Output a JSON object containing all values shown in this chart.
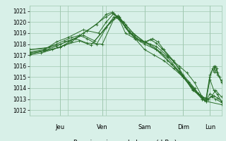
{
  "bg_color": "#d8f0e8",
  "grid_color": "#a0c8b0",
  "line_color": "#2a6e2a",
  "marker_color": "#2a6e2a",
  "ylim": [
    1011.5,
    1021.5
  ],
  "yticks": [
    1012,
    1013,
    1014,
    1015,
    1016,
    1017,
    1018,
    1019,
    1020,
    1021
  ],
  "xlabel": "Pression niveau de la mer( hPa )",
  "day_labels": [
    "Jeu",
    "Ven",
    "Sam",
    "Dim",
    "Lun"
  ],
  "day_positions": [
    0.16,
    0.38,
    0.6,
    0.8,
    0.94
  ],
  "lines": [
    [
      0.0,
      1017.1,
      0.08,
      1017.4,
      0.16,
      1017.7,
      0.22,
      1018.2,
      0.28,
      1019.0,
      0.35,
      1019.8,
      0.4,
      1020.7,
      0.43,
      1020.9,
      0.46,
      1020.5,
      0.5,
      1019.5,
      0.55,
      1018.6,
      0.6,
      1018.1,
      0.63,
      1018.4,
      0.66,
      1018.1,
      0.69,
      1017.6,
      0.72,
      1017.0,
      0.75,
      1016.4,
      0.78,
      1015.8,
      0.8,
      1015.2,
      0.83,
      1014.6,
      0.86,
      1014.0,
      0.88,
      1013.5,
      0.9,
      1013.1,
      0.92,
      1012.8,
      1.0,
      1012.5
    ],
    [
      0.0,
      1017.1,
      0.16,
      1017.7,
      0.3,
      1019.2,
      0.4,
      1020.5,
      0.43,
      1020.8,
      0.47,
      1020.3,
      0.52,
      1019.2,
      0.56,
      1018.5,
      0.6,
      1018.2,
      0.64,
      1018.5,
      0.67,
      1018.2,
      0.7,
      1017.5,
      0.75,
      1016.5,
      0.8,
      1015.1,
      0.85,
      1013.8,
      0.9,
      1013.2,
      0.92,
      1013.1,
      0.94,
      1015.2,
      0.955,
      1015.8,
      0.96,
      1015.5,
      0.965,
      1015.9,
      0.97,
      1016.0,
      0.98,
      1015.2,
      1.0,
      1014.7
    ],
    [
      0.0,
      1017.5,
      0.08,
      1017.6,
      0.14,
      1018.0,
      0.18,
      1018.3,
      0.22,
      1018.6,
      0.26,
      1018.8,
      0.3,
      1018.5,
      0.35,
      1018.0,
      0.4,
      1019.5,
      0.44,
      1020.5,
      0.47,
      1020.2,
      0.5,
      1019.0,
      0.55,
      1018.5,
      0.6,
      1018.0,
      0.66,
      1017.5,
      0.72,
      1016.8,
      0.78,
      1015.5,
      0.84,
      1014.2,
      0.88,
      1013.5,
      0.92,
      1013.0,
      0.94,
      1014.8,
      0.96,
      1013.8,
      0.98,
      1013.4,
      1.0,
      1012.8
    ],
    [
      0.0,
      1017.5,
      0.1,
      1017.7,
      0.16,
      1018.0,
      0.24,
      1018.5,
      0.3,
      1018.1,
      0.38,
      1018.0,
      0.44,
      1020.3,
      0.47,
      1020.5,
      0.5,
      1019.5,
      0.55,
      1018.5,
      0.6,
      1017.5,
      0.65,
      1017.0,
      0.7,
      1016.5,
      0.75,
      1015.8,
      0.8,
      1015.0,
      0.85,
      1014.0,
      0.9,
      1013.0,
      0.92,
      1012.9,
      0.95,
      1013.3,
      0.97,
      1013.8,
      1.0,
      1013.2
    ],
    [
      0.0,
      1017.3,
      0.08,
      1017.5,
      0.14,
      1018.2,
      0.2,
      1018.6,
      0.28,
      1019.3,
      0.36,
      1019.0,
      0.4,
      1020.0,
      0.44,
      1020.8,
      0.48,
      1020.1,
      0.52,
      1019.0,
      0.58,
      1018.3,
      0.63,
      1018.0,
      0.68,
      1017.3,
      0.74,
      1016.2,
      0.8,
      1015.0,
      0.85,
      1013.9,
      0.9,
      1013.0,
      0.92,
      1012.8,
      0.94,
      1015.0,
      0.96,
      1016.0,
      0.97,
      1015.5,
      0.975,
      1015.8,
      0.98,
      1015.4,
      0.99,
      1015.0,
      1.0,
      1014.5
    ],
    [
      0.0,
      1017.2,
      0.07,
      1017.4,
      0.14,
      1017.8,
      0.2,
      1018.3,
      0.28,
      1018.8,
      0.34,
      1018.3,
      0.42,
      1020.0,
      0.46,
      1020.6,
      0.5,
      1019.8,
      0.55,
      1018.8,
      0.6,
      1018.2,
      0.66,
      1017.8,
      0.72,
      1016.9,
      0.78,
      1016.0,
      0.82,
      1015.4,
      0.86,
      1014.5,
      0.9,
      1013.2,
      0.92,
      1012.9,
      0.94,
      1013.5,
      0.96,
      1013.3,
      0.98,
      1013.1,
      1.0,
      1012.8
    ],
    [
      0.0,
      1017.0,
      0.06,
      1017.2,
      0.12,
      1017.5,
      0.18,
      1017.9,
      0.26,
      1018.3,
      0.32,
      1017.9,
      0.4,
      1019.5,
      0.45,
      1020.5,
      0.49,
      1020.0,
      0.54,
      1019.0,
      0.6,
      1018.2,
      0.66,
      1017.5,
      0.72,
      1016.5,
      0.78,
      1015.5,
      0.83,
      1014.5,
      0.88,
      1013.5,
      0.91,
      1012.9,
      0.93,
      1013.0,
      0.95,
      1013.2,
      0.97,
      1013.0,
      1.0,
      1012.7
    ]
  ]
}
